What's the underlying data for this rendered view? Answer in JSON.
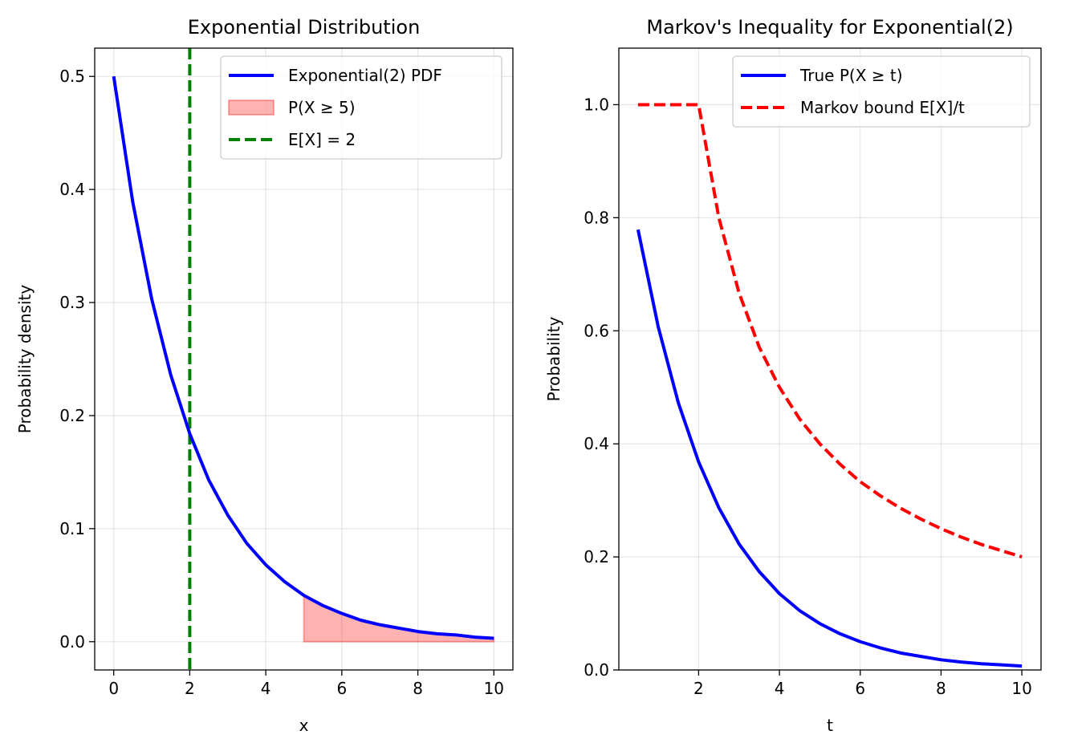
{
  "chart_data": [
    {
      "type": "line",
      "title": "Exponential Distribution",
      "xlabel": "x",
      "ylabel": "Probability density",
      "xlim": [
        -0.5,
        10.5
      ],
      "ylim": [
        -0.025,
        0.525
      ],
      "xticks": [
        0,
        2,
        4,
        6,
        8,
        10
      ],
      "xtick_labels": [
        "0",
        "2",
        "4",
        "6",
        "8",
        "10"
      ],
      "yticks": [
        0.0,
        0.1,
        0.2,
        0.3,
        0.4,
        0.5
      ],
      "ytick_labels": [
        "0.0",
        "0.1",
        "0.2",
        "0.3",
        "0.4",
        "0.5"
      ],
      "grid": true,
      "legend_position": "top-right",
      "series": [
        {
          "name": "Exponential(2) PDF",
          "kind": "line",
          "color": "#0000ff",
          "style": "solid",
          "x": [
            0,
            0.5,
            1,
            1.5,
            2,
            2.5,
            3,
            3.5,
            4,
            4.5,
            5,
            5.5,
            6,
            6.5,
            7,
            7.5,
            8,
            8.5,
            9,
            9.5,
            10
          ],
          "y": [
            0.5,
            0.389,
            0.303,
            0.236,
            0.184,
            0.143,
            0.112,
            0.087,
            0.068,
            0.053,
            0.041,
            0.032,
            0.025,
            0.019,
            0.015,
            0.012,
            0.009,
            0.007,
            0.006,
            0.004,
            0.003
          ]
        },
        {
          "name": "P(X ≥ 5)",
          "kind": "area",
          "color": "#ff0000",
          "opacity": 0.3,
          "x": [
            5,
            5.5,
            6,
            6.5,
            7,
            7.5,
            8,
            8.5,
            9,
            9.5,
            10
          ],
          "y": [
            0.041,
            0.032,
            0.025,
            0.019,
            0.015,
            0.012,
            0.009,
            0.007,
            0.006,
            0.004,
            0.003
          ]
        },
        {
          "name": "E[X] = 2",
          "kind": "vline",
          "color": "#008000",
          "style": "dashed",
          "x_value": 2
        }
      ]
    },
    {
      "type": "line",
      "title": "Markov's Inequality for Exponential(2)",
      "xlabel": "t",
      "ylabel": "Probability",
      "xlim": [
        0.025,
        10.475
      ],
      "ylim": [
        0.0,
        1.1
      ],
      "xticks": [
        2,
        4,
        6,
        8,
        10
      ],
      "xtick_labels": [
        "2",
        "4",
        "6",
        "8",
        "10"
      ],
      "yticks": [
        0.0,
        0.2,
        0.4,
        0.6,
        0.8,
        1.0
      ],
      "ytick_labels": [
        "0.0",
        "0.2",
        "0.4",
        "0.6",
        "0.8",
        "1.0"
      ],
      "grid": true,
      "legend_position": "top-right",
      "series": [
        {
          "name": "True P(X ≥ t)",
          "kind": "line",
          "color": "#0000ff",
          "style": "solid",
          "x": [
            0.5,
            1,
            1.5,
            2,
            2.5,
            3,
            3.5,
            4,
            4.5,
            5,
            5.5,
            6,
            6.5,
            7,
            7.5,
            8,
            8.5,
            9,
            9.5,
            10
          ],
          "y": [
            0.779,
            0.607,
            0.472,
            0.368,
            0.287,
            0.223,
            0.174,
            0.135,
            0.105,
            0.082,
            0.064,
            0.05,
            0.039,
            0.03,
            0.024,
            0.018,
            0.014,
            0.011,
            0.009,
            0.007
          ]
        },
        {
          "name": "Markov bound E[X]/t",
          "kind": "line",
          "color": "#ff0000",
          "style": "dashed",
          "x": [
            0.5,
            1,
            1.5,
            2,
            2.5,
            3,
            3.5,
            4,
            4.5,
            5,
            5.5,
            6,
            6.5,
            7,
            7.5,
            8,
            8.5,
            9,
            9.5,
            10
          ],
          "y": [
            1.0,
            1.0,
            1.0,
            1.0,
            0.8,
            0.667,
            0.571,
            0.5,
            0.444,
            0.4,
            0.364,
            0.333,
            0.308,
            0.286,
            0.267,
            0.25,
            0.235,
            0.222,
            0.211,
            0.2
          ]
        }
      ]
    }
  ]
}
